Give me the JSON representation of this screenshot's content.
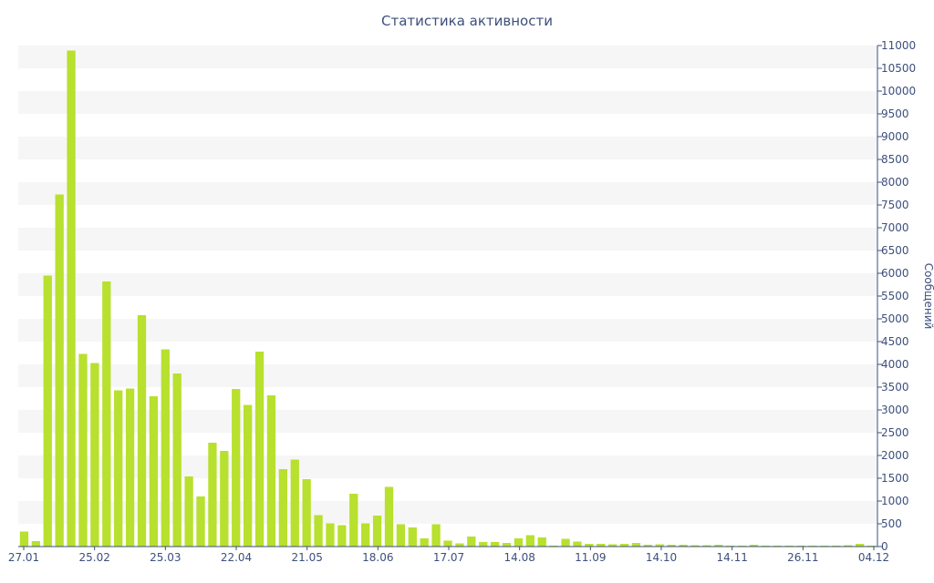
{
  "chart_data": {
    "type": "bar",
    "title": "Статистика активности",
    "xlabel": "",
    "ylabel": "Сообщений",
    "y_axis_side": "right",
    "ylim": [
      0,
      11000
    ],
    "y_ticks": [
      0,
      500,
      1000,
      1500,
      2000,
      2500,
      3000,
      3500,
      4000,
      4500,
      5000,
      5500,
      6000,
      6500,
      7000,
      7500,
      8000,
      8500,
      9000,
      9500,
      10000,
      10500,
      11000
    ],
    "x_tick_labels": [
      "27.01",
      "25.02",
      "25.03",
      "22.04",
      "21.05",
      "18.06",
      "17.07",
      "14.08",
      "11.09",
      "14.10",
      "14.11",
      "26.11",
      "04.12"
    ],
    "grid": "alternating horizontal bands",
    "colors": {
      "bar": "#b8e02e",
      "axis": "#3c4f7c",
      "band": "#f6f6f6"
    },
    "values": [
      330,
      120,
      5950,
      7730,
      10890,
      4230,
      4030,
      5820,
      3430,
      3470,
      5080,
      3300,
      4330,
      3800,
      1540,
      1100,
      2280,
      2100,
      3460,
      3110,
      4280,
      3320,
      1700,
      1910,
      1480,
      690,
      510,
      470,
      1160,
      510,
      680,
      1310,
      490,
      420,
      180,
      490,
      130,
      70,
      220,
      100,
      100,
      80,
      180,
      250,
      200,
      20,
      170,
      110,
      60,
      60,
      50,
      60,
      80,
      40,
      50,
      40,
      40,
      30,
      30,
      40,
      20,
      20,
      40,
      20,
      20,
      20,
      20,
      20,
      20,
      20,
      30,
      60,
      20
    ]
  }
}
